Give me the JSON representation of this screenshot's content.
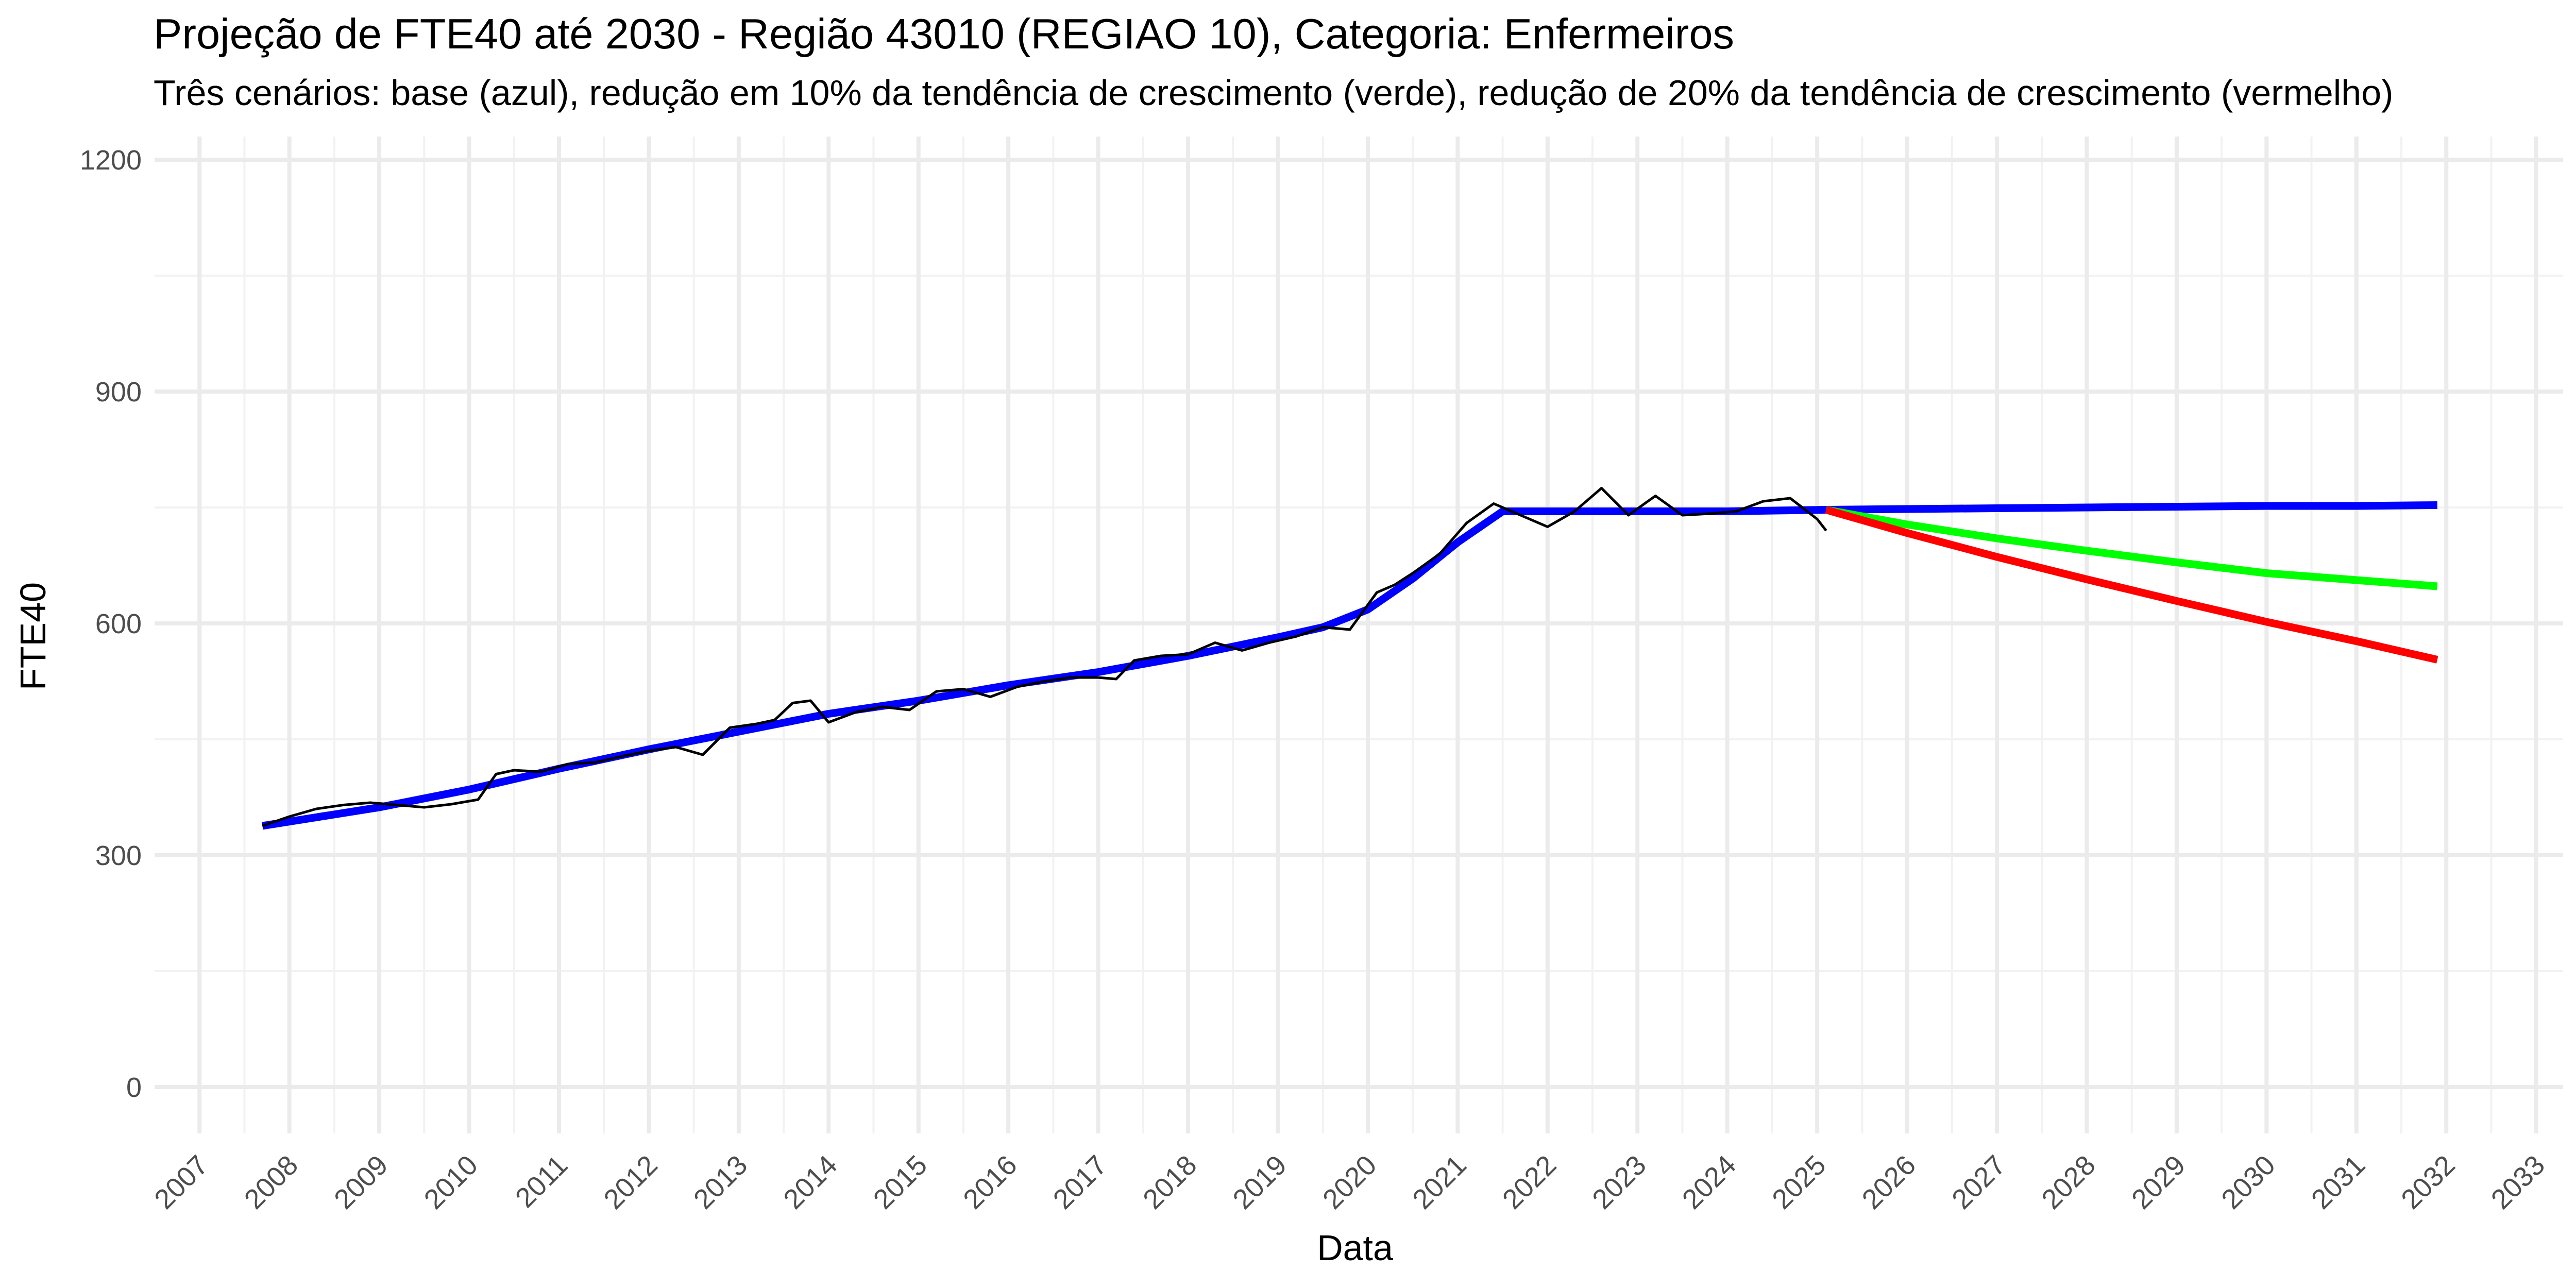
{
  "chart_data": {
    "type": "line",
    "title": "Projeção de FTE40 até 2030 - Região 43010 (REGIAO 10), Categoria: Enfermeiros",
    "subtitle": "Três cenários: base (azul), redução em 10% da tendência de crescimento (verde), redução de 20% da tendência de crescimento (vermelho)",
    "xlabel": "Data",
    "ylabel": "FTE40",
    "xlim": [
      2006.5,
      2033.3
    ],
    "ylim": [
      -60,
      1230
    ],
    "y_ticks": [
      0,
      300,
      600,
      900,
      1200
    ],
    "x_ticks": [
      "2007",
      "2008",
      "2009",
      "2010",
      "2011",
      "2012",
      "2013",
      "2014",
      "2015",
      "2016",
      "2017",
      "2018",
      "2019",
      "2020",
      "2021",
      "2022",
      "2023",
      "2024",
      "2025",
      "2026",
      "2027",
      "2028",
      "2029",
      "2030",
      "2031",
      "2032",
      "2033"
    ],
    "grid": true,
    "series": [
      {
        "color": "#000000",
        "x": [
          2007.7,
          2008.0,
          2008.3,
          2008.6,
          2008.9,
          2009.2,
          2009.5,
          2009.8,
          2010.1,
          2010.3,
          2010.5,
          2010.8,
          2011.1,
          2011.4,
          2011.7,
          2012.0,
          2012.3,
          2012.6,
          2012.9,
          2013.2,
          2013.4,
          2013.6,
          2013.8,
          2014.0,
          2014.3,
          2014.6,
          2014.9,
          2015.2,
          2015.5,
          2015.8,
          2016.1,
          2016.4,
          2016.7,
          2017.0,
          2017.2,
          2017.4,
          2017.7,
          2018.0,
          2018.3,
          2018.6,
          2018.9,
          2019.2,
          2019.5,
          2019.8,
          2020.1,
          2020.3,
          2020.5,
          2020.8,
          2021.1,
          2021.4,
          2021.7,
          2022.0,
          2022.3,
          2022.6,
          2022.9,
          2023.2,
          2023.5,
          2023.8,
          2024.1,
          2024.4,
          2024.7,
          2025.0,
          2025.1
        ],
        "y": [
          338,
          350,
          360,
          365,
          368,
          365,
          362,
          366,
          372,
          405,
          410,
          408,
          418,
          420,
          428,
          435,
          440,
          430,
          465,
          470,
          475,
          497,
          500,
          472,
          485,
          492,
          488,
          512,
          515,
          505,
          518,
          525,
          530,
          530,
          528,
          552,
          558,
          560,
          575,
          565,
          575,
          583,
          595,
          592,
          640,
          650,
          665,
          690,
          730,
          755,
          740,
          725,
          745,
          775,
          740,
          765,
          740,
          742,
          745,
          758,
          762,
          735,
          720
        ]
      },
      {
        "color": "#0000ff",
        "x": [
          2007.7,
          2009.0,
          2010.0,
          2011.0,
          2012.0,
          2013.0,
          2014.0,
          2015.0,
          2016.0,
          2017.0,
          2018.0,
          2019.0,
          2019.5,
          2020.0,
          2020.5,
          2021.0,
          2021.5,
          2022.0,
          2023.0,
          2024.0,
          2025.1,
          2026.0,
          2027.0,
          2028.0,
          2029.0,
          2030.0,
          2031.0,
          2031.9
        ],
        "y": [
          338,
          362,
          385,
          412,
          437,
          460,
          483,
          500,
          520,
          537,
          558,
          582,
          595,
          618,
          658,
          705,
          745,
          745,
          745,
          745,
          747,
          748,
          749,
          750,
          751,
          752,
          752,
          753
        ]
      },
      {
        "color": "#00ff00",
        "x": [
          2025.1,
          2026.0,
          2027.0,
          2028.0,
          2029.0,
          2030.0,
          2031.0,
          2031.9
        ],
        "y": [
          747,
          728,
          710,
          694,
          679,
          665,
          656,
          648
        ]
      },
      {
        "color": "#ff0000",
        "x": [
          2025.1,
          2026.0,
          2027.0,
          2028.0,
          2029.0,
          2030.0,
          2031.0,
          2031.9
        ],
        "y": [
          747,
          717,
          686,
          657,
          629,
          602,
          577,
          553
        ]
      }
    ]
  }
}
